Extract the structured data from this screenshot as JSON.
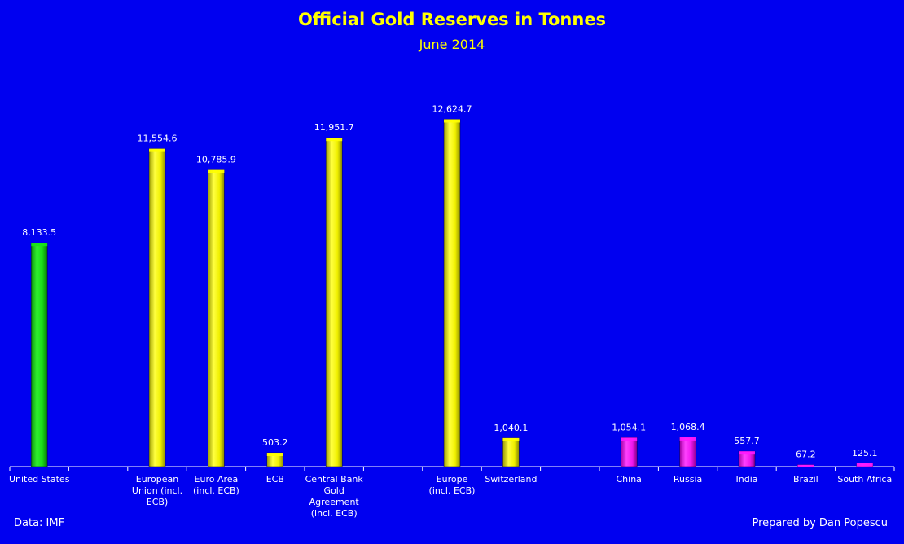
{
  "header": {
    "title": "Official Gold Reserves in Tonnes",
    "subtitle": "June 2014"
  },
  "footer": {
    "source": "Data: IMF",
    "credit": "Prepared by Dan Popescu"
  },
  "colors": {
    "background": "#0000f0",
    "title": "#ffff00",
    "green": "#18e418",
    "yellow": "#ffff00",
    "magenta": "#ff18ff"
  },
  "chart_data": {
    "type": "bar",
    "title": "Official Gold Reserves in Tonnes",
    "subtitle": "June 2014",
    "xlabel": "",
    "ylabel": "",
    "ylim": [
      0,
      14000
    ],
    "grid": false,
    "legend": "none",
    "categories": [
      "United States",
      "",
      "European Union (incl. ECB)",
      "Euro Area (incl. ECB)",
      "ECB",
      "Central Bank Gold Agreement (incl. ECB)",
      "",
      "Europe (incl. ECB)",
      "Switzerland",
      "",
      "China",
      "Russia",
      "India",
      "Brazil",
      "South Africa"
    ],
    "category_lines": [
      [
        "United States"
      ],
      [],
      [
        "European",
        "Union (incl.",
        "ECB)"
      ],
      [
        "Euro Area",
        "(incl. ECB)"
      ],
      [
        "ECB"
      ],
      [
        "Central Bank",
        "Gold",
        "Agreement",
        "(incl. ECB)"
      ],
      [],
      [
        "Europe",
        "(incl. ECB)"
      ],
      [
        "Switzerland"
      ],
      [],
      [
        "China"
      ],
      [
        "Russia"
      ],
      [
        "India"
      ],
      [
        "Brazil"
      ],
      [
        "South Africa"
      ]
    ],
    "values": [
      8133.5,
      null,
      11554.6,
      10785.9,
      503.2,
      11951.7,
      null,
      12624.7,
      1040.1,
      null,
      1054.1,
      1068.4,
      557.7,
      67.2,
      125.1
    ],
    "value_labels": [
      "8,133.5",
      "",
      "11,554.6",
      "10,785.9",
      "503.2",
      "11,951.7",
      "",
      "12,624.7",
      "1,040.1",
      "",
      "1,054.1",
      "1,068.4",
      "557.7",
      "67.2",
      "125.1"
    ],
    "bar_colors": [
      "green",
      "",
      "yellow",
      "yellow",
      "yellow",
      "yellow",
      "",
      "yellow",
      "yellow",
      "",
      "magenta",
      "magenta",
      "magenta",
      "magenta",
      "magenta"
    ]
  }
}
